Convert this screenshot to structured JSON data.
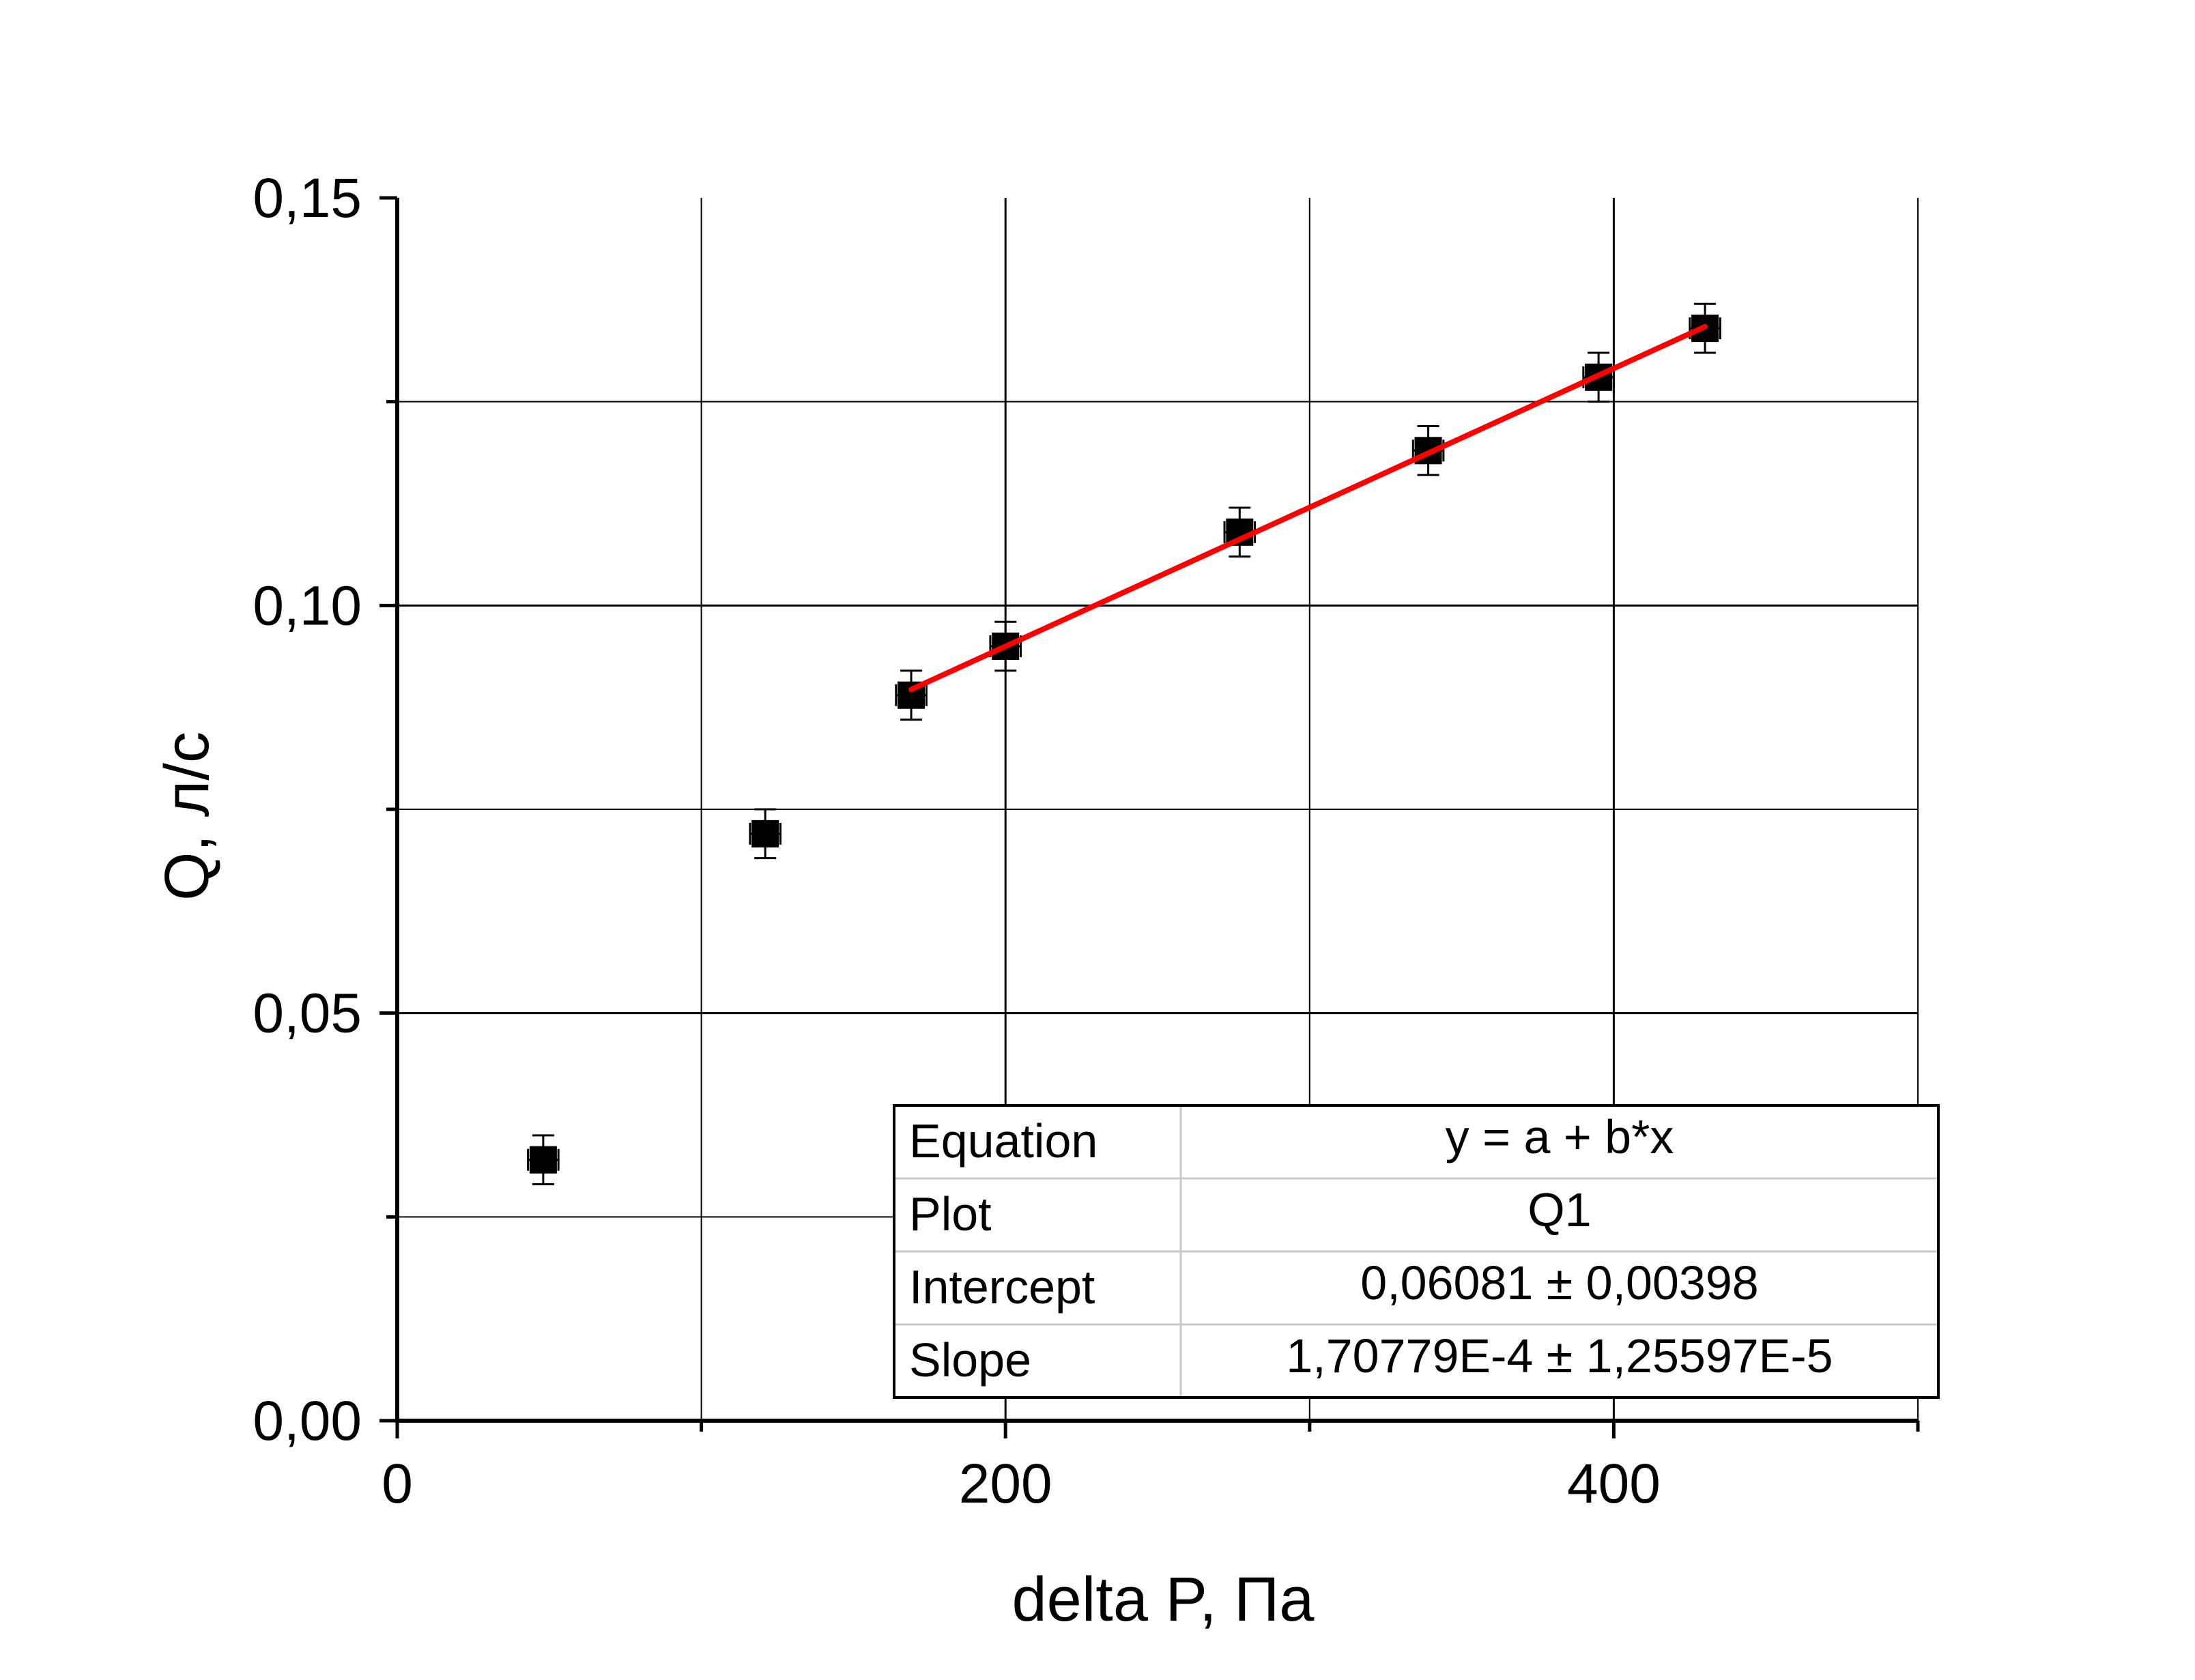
{
  "chart_data": {
    "type": "scatter",
    "xlabel": "delta P, Па",
    "ylabel": "Q, л/с",
    "xlim": [
      0,
      500
    ],
    "ylim": [
      0,
      0.15
    ],
    "x_ticks": [
      0,
      200,
      400
    ],
    "x_tick_labels": [
      "0",
      "200",
      "400"
    ],
    "y_ticks": [
      0,
      0.05,
      0.1,
      0.15
    ],
    "y_tick_labels": [
      "0,00",
      "0,05",
      "0,10",
      "0,15"
    ],
    "grid": true,
    "series": [
      {
        "type": "scatter",
        "marker": "square",
        "color": "#000000",
        "x": [
          48,
          121,
          169,
          200,
          277,
          339,
          395,
          430
        ],
        "y": [
          0.032,
          0.072,
          0.089,
          0.095,
          0.109,
          0.119,
          0.128,
          0.134
        ],
        "y_error": 0.003,
        "x_error": 5
      },
      {
        "type": "line",
        "color": "#ff0000",
        "x": [
          169,
          430
        ],
        "y": [
          0.0897,
          0.1342
        ]
      }
    ],
    "fit_table": {
      "rows": [
        {
          "label": "Equation",
          "value": "y = a + b*x"
        },
        {
          "label": "Plot",
          "value": "Q1"
        },
        {
          "label": "Intercept",
          "value": "0,06081 ± 0,00398"
        },
        {
          "label": "Slope",
          "value": "1,70779E-4 ± 1,25597E-5"
        }
      ]
    }
  }
}
